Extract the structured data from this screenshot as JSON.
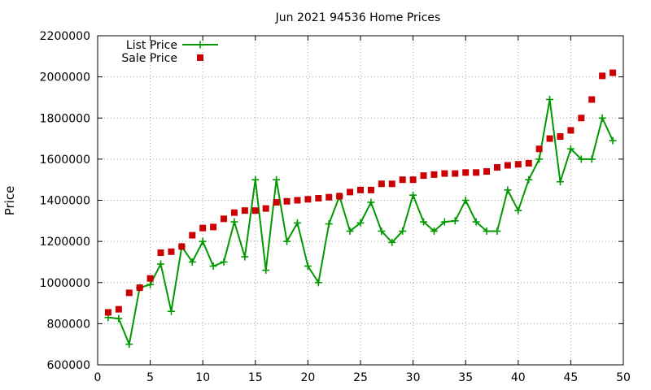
{
  "chart_data": {
    "type": "line",
    "title": "Jun 2021 94536 Home Prices",
    "xlabel": "",
    "ylabel": "Price",
    "xlim": [
      0,
      50
    ],
    "ylim": [
      600000,
      2200000
    ],
    "xticks": [
      0,
      5,
      10,
      15,
      20,
      25,
      30,
      35,
      40,
      45,
      50
    ],
    "yticks": [
      600000,
      800000,
      1000000,
      1200000,
      1400000,
      1600000,
      1800000,
      2000000,
      2200000
    ],
    "grid": true,
    "legend_position": "top-left",
    "series": [
      {
        "name": "List Price",
        "style": "line-plus",
        "color": "#009900",
        "x": [
          1,
          2,
          3,
          4,
          5,
          6,
          7,
          8,
          9,
          10,
          11,
          12,
          13,
          14,
          15,
          16,
          17,
          18,
          19,
          20,
          21,
          22,
          23,
          24,
          25,
          26,
          27,
          28,
          29,
          30,
          31,
          32,
          33,
          34,
          35,
          36,
          37,
          38,
          39,
          40,
          41,
          42,
          43,
          44,
          45,
          46,
          47,
          48,
          49
        ],
        "y": [
          830000,
          825000,
          700000,
          975000,
          990000,
          1090000,
          860000,
          1175000,
          1100000,
          1200000,
          1080000,
          1100000,
          1295000,
          1125000,
          1500000,
          1060000,
          1500000,
          1200000,
          1290000,
          1080000,
          1000000,
          1285000,
          1420000,
          1250000,
          1290000,
          1390000,
          1250000,
          1195000,
          1250000,
          1425000,
          1295000,
          1250000,
          1295000,
          1300000,
          1400000,
          1295000,
          1250000,
          1250000,
          1450000,
          1350000,
          1500000,
          1600000,
          1890000,
          1490000,
          1650000,
          1600000,
          1600000,
          1800000,
          1690000
        ]
      },
      {
        "name": "Sale Price",
        "style": "points-square",
        "color": "#cc0000",
        "x": [
          1,
          2,
          3,
          4,
          5,
          6,
          7,
          8,
          9,
          10,
          11,
          12,
          13,
          14,
          15,
          16,
          17,
          18,
          19,
          20,
          21,
          22,
          23,
          24,
          25,
          26,
          27,
          28,
          29,
          30,
          31,
          32,
          33,
          34,
          35,
          36,
          37,
          38,
          39,
          40,
          41,
          42,
          43,
          44,
          45,
          46,
          47,
          48,
          49
        ],
        "y": [
          855000,
          870000,
          950000,
          975000,
          1020000,
          1145000,
          1150000,
          1175000,
          1230000,
          1265000,
          1270000,
          1310000,
          1340000,
          1350000,
          1350000,
          1360000,
          1390000,
          1395000,
          1400000,
          1405000,
          1410000,
          1415000,
          1420000,
          1440000,
          1450000,
          1450000,
          1480000,
          1480000,
          1500000,
          1500000,
          1520000,
          1525000,
          1530000,
          1530000,
          1535000,
          1535000,
          1540000,
          1560000,
          1570000,
          1575000,
          1580000,
          1650000,
          1700000,
          1710000,
          1740000,
          1800000,
          1890000,
          2005000,
          2020000
        ]
      }
    ]
  }
}
